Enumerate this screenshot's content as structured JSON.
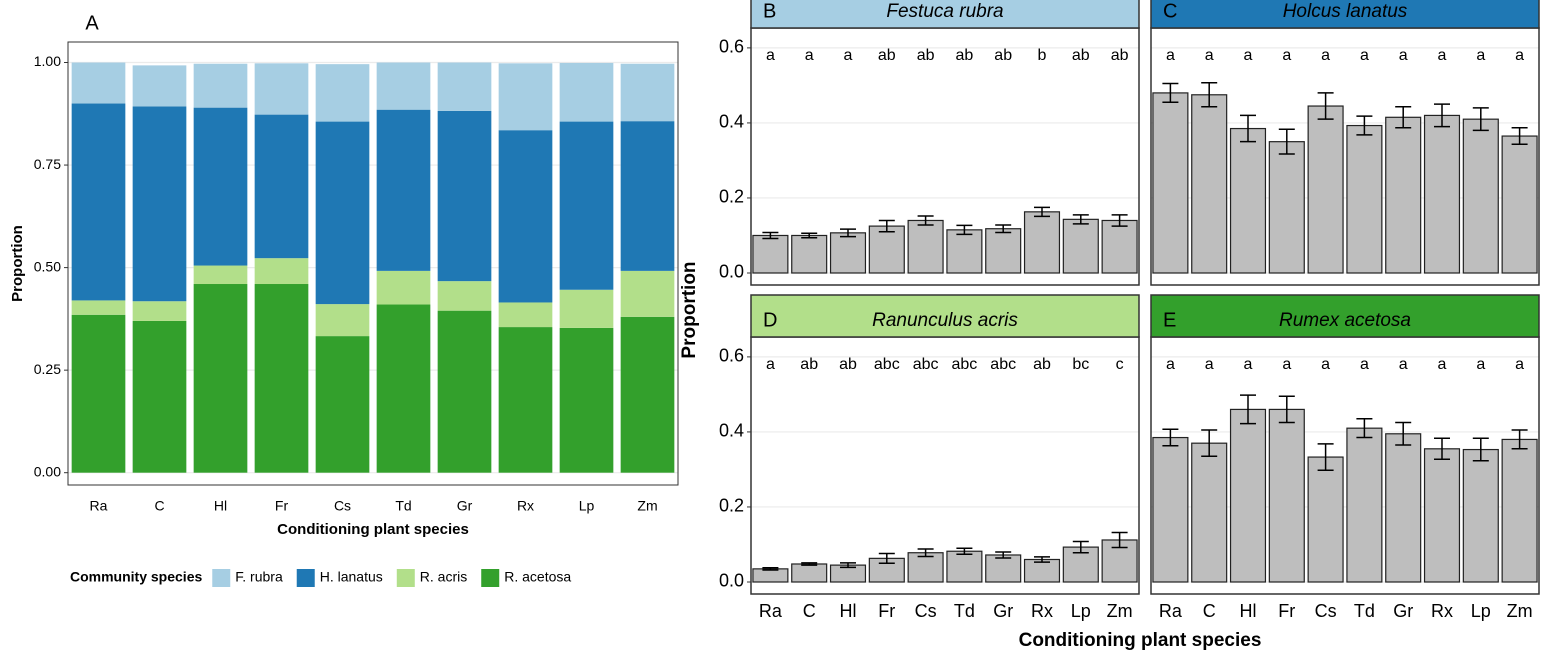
{
  "chart_data": [
    {
      "type": "bar",
      "stacked": true,
      "panel_label": "A",
      "x_label": "Conditioning plant species",
      "y_label": "Proportion",
      "categories": [
        "Ra",
        "C",
        "Hl",
        "Fr",
        "Cs",
        "Td",
        "Gr",
        "Rx",
        "Lp",
        "Zm"
      ],
      "series": [
        {
          "name": "F. rubra",
          "color": "#a6cee3",
          "values": [
            0.1,
            0.1,
            0.107,
            0.125,
            0.14,
            0.115,
            0.118,
            0.163,
            0.143,
            0.14
          ]
        },
        {
          "name": "H. lanatus",
          "color": "#1f78b4",
          "values": [
            0.48,
            0.475,
            0.385,
            0.35,
            0.445,
            0.393,
            0.415,
            0.42,
            0.41,
            0.365
          ]
        },
        {
          "name": "R. acris",
          "color": "#b2df8a",
          "values": [
            0.035,
            0.048,
            0.045,
            0.063,
            0.078,
            0.082,
            0.072,
            0.06,
            0.093,
            0.112
          ]
        },
        {
          "name": "R. acetosa",
          "color": "#33a02c",
          "values": [
            0.385,
            0.37,
            0.46,
            0.46,
            0.333,
            0.41,
            0.395,
            0.355,
            0.353,
            0.38
          ]
        }
      ],
      "legend_title": "Community species",
      "legend_position": "bottom",
      "ylim": [
        -0.03,
        1.05
      ],
      "yticks": [
        {
          "value": 0,
          "label": "0.00"
        },
        0.25,
        {
          "value": 0.5,
          "label": "0.50"
        },
        0.75,
        {
          "value": 1,
          "label": "1.00"
        }
      ],
      "grid": true
    },
    {
      "type": "bar",
      "panel_label": "B",
      "title": "Festuca rubra",
      "strip_color": "#a6cee3",
      "color": "#bebebe",
      "values": [
        0.1,
        0.1,
        0.107,
        0.125,
        0.14,
        0.115,
        0.118,
        0.163,
        0.143,
        0.14
      ],
      "errors": [
        0.008,
        0.006,
        0.01,
        0.015,
        0.012,
        0.012,
        0.01,
        0.012,
        0.012,
        0.015
      ],
      "letters": [
        "a",
        "a",
        "a",
        "ab",
        "ab",
        "ab",
        "ab",
        "b",
        "ab",
        "ab"
      ],
      "ylim": [
        -0.032,
        0.653
      ],
      "yticks": [
        {
          "value": 0,
          "label": "0.0"
        },
        0.2,
        0.4,
        0.6
      ],
      "grid": true
    },
    {
      "type": "bar",
      "panel_label": "C",
      "title": "Holcus lanatus",
      "strip_color": "#1f78b4",
      "color": "#bebebe",
      "values": [
        0.48,
        0.475,
        0.385,
        0.35,
        0.445,
        0.393,
        0.415,
        0.42,
        0.41,
        0.365
      ],
      "errors": [
        0.025,
        0.032,
        0.035,
        0.033,
        0.035,
        0.025,
        0.028,
        0.03,
        0.03,
        0.022
      ],
      "letters": [
        "a",
        "a",
        "a",
        "a",
        "a",
        "a",
        "a",
        "a",
        "a",
        "a"
      ],
      "ylim": [
        -0.032,
        0.653
      ],
      "yticks": [
        0,
        0.2,
        0.4,
        0.6
      ],
      "grid": true
    },
    {
      "type": "bar",
      "panel_label": "D",
      "title": "Ranunculus acris",
      "strip_color": "#b2df8a",
      "color": "#bebebe",
      "categories": [
        "Ra",
        "C",
        "Hl",
        "Fr",
        "Cs",
        "Td",
        "Gr",
        "Rx",
        "Lp",
        "Zm"
      ],
      "values": [
        0.035,
        0.048,
        0.045,
        0.063,
        0.078,
        0.082,
        0.072,
        0.06,
        0.093,
        0.112
      ],
      "errors": [
        0.003,
        0.003,
        0.006,
        0.013,
        0.01,
        0.008,
        0.008,
        0.007,
        0.015,
        0.02
      ],
      "letters": [
        "a",
        "ab",
        "ab",
        "abc",
        "abc",
        "abc",
        "abc",
        "ab",
        "bc",
        "c"
      ],
      "ylim": [
        -0.032,
        0.653
      ],
      "yticks": [
        {
          "value": 0,
          "label": "0.0"
        },
        0.2,
        0.4,
        0.6
      ],
      "grid": true
    },
    {
      "type": "bar",
      "panel_label": "E",
      "title": "Rumex acetosa",
      "strip_color": "#33a02c",
      "color": "#bebebe",
      "categories": [
        "Ra",
        "C",
        "Hl",
        "Fr",
        "Cs",
        "Td",
        "Gr",
        "Rx",
        "Lp",
        "Zm"
      ],
      "values": [
        0.385,
        0.37,
        0.46,
        0.46,
        0.333,
        0.41,
        0.395,
        0.355,
        0.353,
        0.38
      ],
      "errors": [
        0.022,
        0.035,
        0.038,
        0.035,
        0.035,
        0.025,
        0.03,
        0.028,
        0.03,
        0.025
      ],
      "letters": [
        "a",
        "a",
        "a",
        "a",
        "a",
        "a",
        "a",
        "a",
        "a",
        "a"
      ],
      "ylim": [
        -0.032,
        0.653
      ],
      "yticks": [
        0,
        0.2,
        0.4,
        0.6
      ],
      "grid": true
    }
  ],
  "shared_axes": {
    "x_label": "Conditioning plant species",
    "y_label": "Proportion"
  }
}
